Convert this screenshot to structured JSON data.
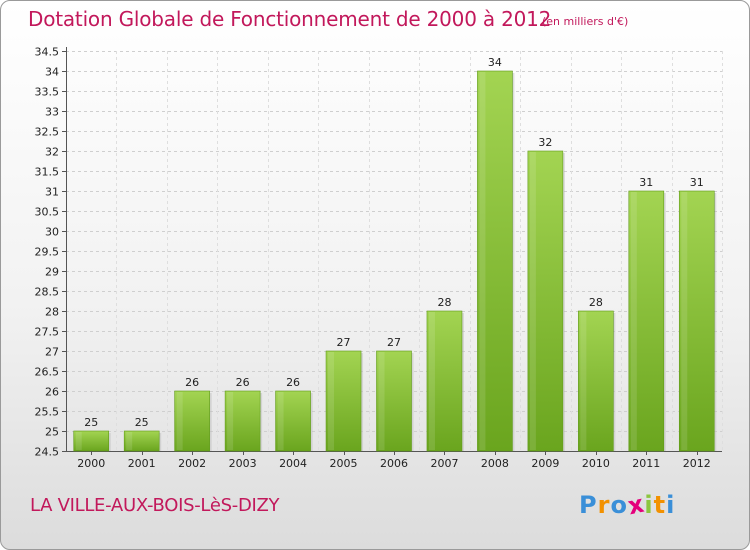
{
  "header": {
    "title": "Dotation Globale de Fonctionnement de 2000 à 2012",
    "subtitle": "(en milliers d'€)"
  },
  "footer": {
    "commune": "LA VILLE-AUX-BOIS-LèS-DIZY",
    "logo_letters": [
      "P",
      "r",
      "o",
      "x",
      "i",
      "t",
      "i"
    ],
    "logo_colors": [
      "#3a8fd8",
      "#f29100",
      "#3a8fd8",
      "#e4007c",
      "#8cc63f",
      "#f29100",
      "#3a8fd8"
    ]
  },
  "chart_data": {
    "type": "bar",
    "title": "Dotation Globale de Fonctionnement de 2000 à 2012",
    "subtitle": "(en milliers d'€)",
    "categories": [
      "2000",
      "2001",
      "2002",
      "2003",
      "2004",
      "2005",
      "2006",
      "2007",
      "2008",
      "2009",
      "2010",
      "2011",
      "2012"
    ],
    "values": [
      25,
      25,
      26,
      26,
      26,
      27,
      27,
      28,
      34,
      32,
      28,
      31,
      31
    ],
    "ylim": [
      24.5,
      34.5
    ],
    "yticks": [
      "24.5",
      "25",
      "25.5",
      "26",
      "26.5",
      "27",
      "27.5",
      "28",
      "28.5",
      "29",
      "29.5",
      "30",
      "30.5",
      "31",
      "31.5",
      "32",
      "32.5",
      "33",
      "33.5",
      "34",
      "34.5"
    ],
    "grid": true,
    "bar_color": "#7ab32e",
    "bar_color_light": "#9fd14e"
  }
}
